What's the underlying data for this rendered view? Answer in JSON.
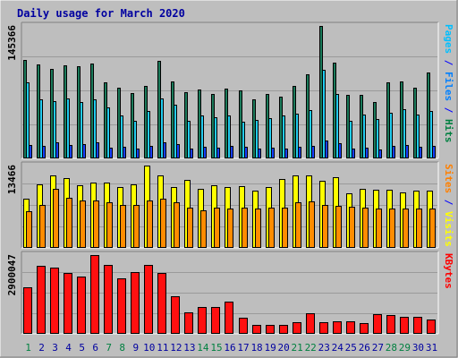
{
  "chart_data": {
    "type": "bar",
    "title": "Daily usage for March 2020",
    "categories": [
      "1",
      "2",
      "3",
      "4",
      "5",
      "6",
      "7",
      "8",
      "9",
      "10",
      "11",
      "12",
      "13",
      "14",
      "15",
      "16",
      "17",
      "18",
      "19",
      "20",
      "21",
      "22",
      "23",
      "24",
      "25",
      "26",
      "27",
      "28",
      "29",
      "30",
      "31"
    ],
    "weekend_days": [
      "1",
      "7",
      "8",
      "14",
      "15",
      "21",
      "22",
      "28",
      "29"
    ],
    "panels": [
      {
        "name": "hits-files-pages",
        "ymax_label": "145366",
        "ymax": 145366,
        "right_labels": [
          {
            "text": "Pages",
            "color": "#00bfff"
          },
          {
            "text": " / ",
            "color": "#0000ff"
          },
          {
            "text": "Files",
            "color": "#0080ff"
          },
          {
            "text": " / ",
            "color": "#0000ff"
          },
          {
            "text": "Hits",
            "color": "#008040"
          }
        ],
        "series": [
          {
            "name": "Hits",
            "color": "#1b7a5a",
            "values": [
              108000,
              103000,
              98000,
              102000,
              101000,
              104000,
              83000,
              78000,
              72000,
              80000,
              107000,
              84000,
              73000,
              76000,
              71000,
              77000,
              75000,
              65000,
              71000,
              68000,
              80000,
              92000,
              145366,
              105000,
              70000,
              70000,
              62000,
              83000,
              84000,
              78000,
              94000
            ]
          },
          {
            "name": "Files",
            "color": "#22ccf0",
            "values": [
              83000,
              65000,
              63000,
              66000,
              62000,
              65000,
              56000,
              47000,
              41000,
              52000,
              66000,
              59000,
              41000,
              47000,
              45000,
              47000,
              40000,
              42000,
              44000,
              47000,
              49000,
              53000,
              97000,
              71000,
              41000,
              48000,
              43000,
              50000,
              54000,
              48000,
              52000
            ]
          },
          {
            "name": "Pages",
            "color": "#1840ff",
            "values": [
              15000,
              14000,
              18000,
              15000,
              16000,
              18000,
              12000,
              13000,
              11000,
              14000,
              18000,
              16000,
              11000,
              13000,
              12000,
              14000,
              13000,
              11000,
              12000,
              11000,
              13000,
              14000,
              20000,
              17000,
              11000,
              12000,
              10000,
              14000,
              15000,
              13000,
              14000
            ]
          }
        ]
      },
      {
        "name": "visits-sites",
        "ymax_label": "13466",
        "ymax": 13466,
        "right_labels": [
          {
            "text": "Sites",
            "color": "#ff8000"
          },
          {
            "text": " / ",
            "color": "#0000ff"
          },
          {
            "text": "Visits",
            "color": "#ffff00"
          }
        ],
        "series": [
          {
            "name": "Visits",
            "color": "#ffff00",
            "values": [
              8000,
              10400,
              11900,
              11400,
              10200,
              10700,
              10700,
              10000,
              10400,
              13466,
              11800,
              10000,
              11100,
              9600,
              10200,
              9900,
              10100,
              9400,
              10000,
              11300,
              11800,
              11900,
              11000,
              11500,
              9000,
              9700,
              9500,
              9500,
              9100,
              9400,
              9400
            ]
          },
          {
            "name": "Sites",
            "color": "#ff8c00",
            "values": [
              6000,
              7000,
              9600,
              8200,
              7700,
              7800,
              7400,
              7000,
              7000,
              7700,
              8000,
              7400,
              6600,
              6200,
              6600,
              6500,
              6600,
              6500,
              6600,
              6600,
              7500,
              7600,
              7000,
              6900,
              6800,
              6600,
              6500,
              6500,
              6500,
              6500,
              6400
            ]
          }
        ]
      },
      {
        "name": "kbytes",
        "ymax_label": "2900047",
        "ymax": 2900047,
        "right_labels": [
          {
            "text": "KBytes",
            "color": "#ff0000"
          }
        ],
        "series": [
          {
            "name": "KBytes",
            "color": "#ff1010",
            "values": [
              1700000,
              2500000,
              2450000,
              2240000,
              2100000,
              2900047,
              2550000,
              2050000,
              2270000,
              2540000,
              2250000,
              1400000,
              800000,
              1000000,
              1000000,
              1180000,
              600000,
              330000,
              330000,
              330000,
              430000,
              760000,
              430000,
              450000,
              450000,
              400000,
              720000,
              680000,
              620000,
              640000,
              520000
            ]
          }
        ]
      }
    ],
    "colors": {
      "background": "#bebebe",
      "gridline": "#9a9a9a",
      "frame_light": "#ffffff",
      "frame_dark": "#808080",
      "title_color": "#0000a0",
      "weekday_label": "#0000a0",
      "weekend_label": "#008040"
    }
  }
}
